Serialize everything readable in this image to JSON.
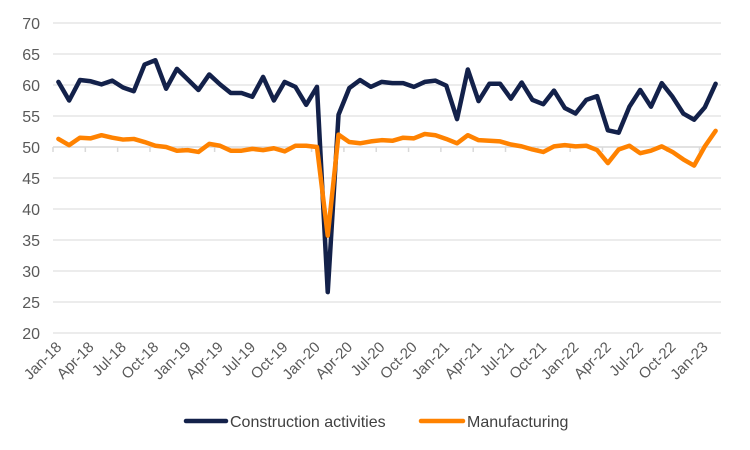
{
  "chart_data": {
    "type": "line",
    "title": "",
    "xlabel": "",
    "ylabel": "",
    "ylim": [
      20,
      70
    ],
    "yticks": [
      20,
      25,
      30,
      35,
      40,
      45,
      50,
      55,
      60,
      65,
      70
    ],
    "grid": true,
    "category_axis_crosses_at": 50,
    "legend_position": "bottom",
    "x": [
      "Jan-18",
      "Feb-18",
      "Mar-18",
      "Apr-18",
      "May-18",
      "Jun-18",
      "Jul-18",
      "Aug-18",
      "Sep-18",
      "Oct-18",
      "Nov-18",
      "Dec-18",
      "Jan-19",
      "Feb-19",
      "Mar-19",
      "Apr-19",
      "May-19",
      "Jun-19",
      "Jul-19",
      "Aug-19",
      "Sep-19",
      "Oct-19",
      "Nov-19",
      "Dec-19",
      "Jan-20",
      "Feb-20",
      "Mar-20",
      "Apr-20",
      "May-20",
      "Jun-20",
      "Jul-20",
      "Aug-20",
      "Sep-20",
      "Oct-20",
      "Nov-20",
      "Dec-20",
      "Jan-21",
      "Feb-21",
      "Mar-21",
      "Apr-21",
      "May-21",
      "Jun-21",
      "Jul-21",
      "Aug-21",
      "Sep-21",
      "Oct-21",
      "Nov-21",
      "Dec-21",
      "Jan-22",
      "Feb-22",
      "Mar-22",
      "Apr-22",
      "May-22",
      "Jun-22",
      "Jul-22",
      "Aug-22",
      "Sep-22",
      "Oct-22",
      "Nov-22",
      "Dec-22",
      "Jan-23",
      "Feb-23"
    ],
    "tick_labels": [
      "Jan-18",
      "Apr-18",
      "Jul-18",
      "Oct-18",
      "Jan-19",
      "Apr-19",
      "Jul-19",
      "Oct-19",
      "Jan-20",
      "Apr-20",
      "Jul-20",
      "Oct-20",
      "Jan-21",
      "Apr-21",
      "Jul-21",
      "Oct-21",
      "Jan-22",
      "Apr-22",
      "Jul-22",
      "Oct-22",
      "Jan-23"
    ],
    "series": [
      {
        "name": "Construction activities",
        "color": "#13214A",
        "values": [
          60.5,
          57.5,
          60.8,
          60.6,
          60.1,
          60.7,
          59.6,
          59.0,
          63.3,
          64.0,
          59.4,
          62.6,
          60.9,
          59.2,
          61.7,
          60.1,
          58.7,
          58.7,
          58.1,
          61.3,
          57.5,
          60.5,
          59.7,
          56.8,
          59.7,
          26.6,
          55.2,
          59.5,
          60.8,
          59.7,
          60.5,
          60.3,
          60.3,
          59.7,
          60.5,
          60.7,
          59.9,
          54.5,
          62.5,
          57.4,
          60.2,
          60.2,
          57.8,
          60.4,
          57.6,
          56.9,
          59.1,
          56.3,
          55.4,
          57.6,
          58.2,
          52.7,
          52.3,
          56.5,
          59.2,
          56.5,
          60.3,
          58.1,
          55.4,
          54.4,
          56.4,
          60.2
        ]
      },
      {
        "name": "Manufacturing",
        "color": "#FF8200",
        "values": [
          51.3,
          50.3,
          51.5,
          51.4,
          51.9,
          51.5,
          51.2,
          51.3,
          50.8,
          50.2,
          50.0,
          49.4,
          49.5,
          49.2,
          50.5,
          50.2,
          49.4,
          49.4,
          49.7,
          49.5,
          49.8,
          49.3,
          50.2,
          50.2,
          50.0,
          35.7,
          52.0,
          50.8,
          50.6,
          50.9,
          51.1,
          51.0,
          51.5,
          51.4,
          52.1,
          51.9,
          51.3,
          50.6,
          51.9,
          51.1,
          51.0,
          50.9,
          50.4,
          50.1,
          49.6,
          49.2,
          50.1,
          50.3,
          50.1,
          50.2,
          49.5,
          47.4,
          49.6,
          50.2,
          49.0,
          49.4,
          50.1,
          49.2,
          48.0,
          47.0,
          50.1,
          52.6
        ]
      }
    ]
  }
}
